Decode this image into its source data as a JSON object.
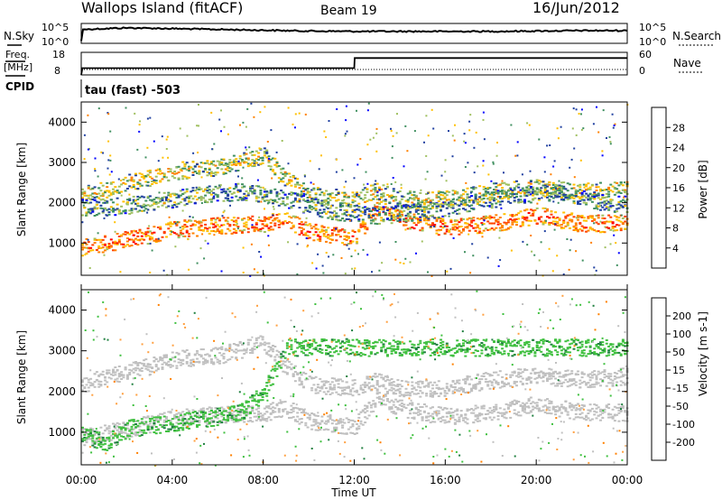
{
  "header": {
    "title": "Wallops Island (fitACF)",
    "beam": "Beam 19",
    "date": "16/Jun/2012"
  },
  "noise_panel": {
    "left_label": "N.Sky",
    "right_label": "N.Search",
    "left_ticks": [
      "10^5",
      "10^0"
    ],
    "right_ticks": [
      "10^5",
      "10^0"
    ]
  },
  "freq_panel": {
    "left_label_top": "Freq.",
    "left_label_unit": "[MHz]",
    "right_label": "Nave",
    "left_ticks": [
      "18",
      "8"
    ],
    "right_ticks": [
      "60",
      "0"
    ],
    "cpid_label": "CPID",
    "cpid_text": "tau (fast) -503"
  },
  "power_colorbar": {
    "label": "Power [dB]",
    "ticks": [
      "28",
      "24",
      "20",
      "16",
      "12",
      "8",
      "4"
    ],
    "colors": [
      "#ff0000",
      "#ff4000",
      "#ff8000",
      "#ffc000",
      "#a0c060",
      "#409060",
      "#2040a0",
      "#0000ff"
    ]
  },
  "velocity_colorbar": {
    "label": "Velocity [m s-1]",
    "ticks": [
      "200",
      "100",
      "50",
      "15",
      "-15",
      "-50",
      "-100",
      "-200"
    ],
    "colors": [
      "#2020c0",
      "#2060a0",
      "#208040",
      "#40c040",
      "#c0c0c0",
      "#ffa040",
      "#ff8000",
      "#ff4000",
      "#ff0000"
    ]
  },
  "chart_data": [
    {
      "type": "line",
      "panel": "noise",
      "x": [
        0,
        0.05,
        2,
        4,
        6,
        8,
        10,
        12,
        14,
        16,
        18,
        20,
        22,
        24
      ],
      "series": [
        {
          "values": [
            0.6,
            3.5,
            3.9,
            3.7,
            3.5,
            3.3,
            3.1,
            3.0,
            3.0,
            3.0,
            3.0,
            3.1,
            3.2,
            3.2
          ]
        }
      ],
      "ylim": [
        0,
        5
      ]
    },
    {
      "type": "line",
      "panel": "frequency",
      "x": [
        0,
        0.05,
        12,
        12.02,
        24
      ],
      "series": [
        {
          "values": [
            8,
            11,
            11,
            15.5,
            15.5
          ]
        }
      ],
      "ylim": [
        8,
        18
      ]
    },
    {
      "type": "heatmap",
      "panel": "power",
      "xlabel": "",
      "ylabel": "Slant Range [km]",
      "xlim": [
        0,
        24
      ],
      "ylim": [
        200,
        4500
      ],
      "yticks": [
        "1000",
        "2000",
        "3000",
        "4000"
      ],
      "bands": [
        {
          "x": [
            0,
            2,
            4,
            6,
            8,
            9,
            10,
            12,
            13,
            14,
            16,
            18,
            20,
            22,
            24
          ],
          "y": [
            900,
            1100,
            1350,
            1450,
            1500,
            1600,
            1300,
            1150,
            1900,
            1600,
            1400,
            1500,
            1700,
            1500,
            1500
          ],
          "power": 26
        },
        {
          "x": [
            0,
            2,
            4,
            6,
            8,
            9,
            10,
            12,
            13,
            14,
            16,
            18,
            20,
            22,
            24
          ],
          "y": [
            2200,
            2500,
            2800,
            2900,
            3200,
            2600,
            2200,
            2100,
            2300,
            2100,
            2100,
            2300,
            2400,
            2300,
            2400
          ],
          "power": 18
        },
        {
          "x": [
            1,
            3,
            5,
            7,
            9,
            11,
            13,
            15,
            17,
            19,
            21,
            23
          ],
          "y": [
            1900,
            2000,
            2200,
            2300,
            2100,
            1800,
            1700,
            1800,
            2000,
            2200,
            2300,
            2000
          ],
          "power": 14
        }
      ]
    },
    {
      "type": "heatmap",
      "panel": "velocity",
      "xlabel": "Time UT",
      "ylabel": "Slant Range [km]",
      "xlim": [
        0,
        24
      ],
      "ylim": [
        200,
        4500
      ],
      "xticks": [
        "00:00",
        "04:00",
        "08:00",
        "12:00",
        "16:00",
        "20:00",
        "00:00"
      ],
      "yticks": [
        "1000",
        "2000",
        "3000",
        "4000"
      ],
      "bands": [
        {
          "x": [
            0,
            2,
            4,
            6,
            8,
            9,
            10,
            12,
            13,
            14,
            16,
            18,
            20,
            22,
            24
          ],
          "y": [
            900,
            1100,
            1350,
            1450,
            1500,
            1600,
            1300,
            1150,
            1900,
            1600,
            1400,
            1500,
            1700,
            1500,
            1500
          ],
          "velocity": 0
        },
        {
          "x": [
            0,
            2,
            4,
            6,
            8,
            9,
            10,
            12,
            13,
            14,
            16,
            18,
            20,
            22,
            24
          ],
          "y": [
            2200,
            2500,
            2800,
            2900,
            3200,
            2600,
            2200,
            2100,
            2300,
            2100,
            2100,
            2300,
            2400,
            2300,
            2400
          ],
          "velocity": 0
        },
        {
          "x": [
            0,
            1,
            2,
            6,
            7,
            8,
            9
          ],
          "y": [
            1000,
            700,
            1100,
            1400,
            1500,
            2000,
            3100
          ],
          "velocity": 40
        }
      ]
    }
  ]
}
